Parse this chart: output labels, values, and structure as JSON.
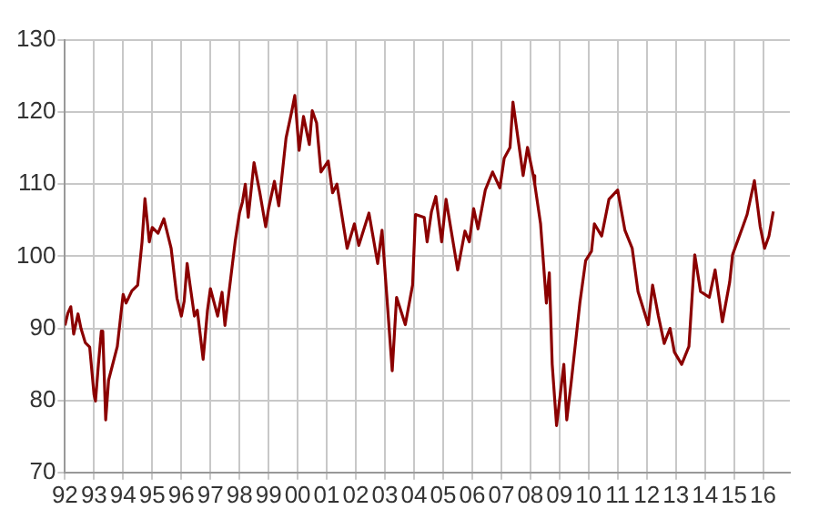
{
  "chart_data": {
    "type": "line",
    "x": [
      1992.0,
      1992.1,
      1992.2,
      1992.3,
      1992.45,
      1992.55,
      1992.7,
      1992.85,
      1993.0,
      1993.05,
      1993.15,
      1993.25,
      1993.3,
      1993.4,
      1993.5,
      1993.8,
      1994.0,
      1994.1,
      1994.3,
      1994.5,
      1994.65,
      1994.75,
      1994.9,
      1995.0,
      1995.2,
      1995.4,
      1995.65,
      1995.85,
      1996.0,
      1996.1,
      1996.2,
      1996.3,
      1996.45,
      1996.55,
      1996.75,
      1996.9,
      1997.0,
      1997.25,
      1997.4,
      1997.5,
      1997.85,
      1998.0,
      1998.1,
      1998.2,
      1998.3,
      1998.5,
      1998.7,
      1998.9,
      1999.0,
      1999.2,
      1999.35,
      1999.6,
      1999.8,
      1999.9,
      2000.05,
      2000.2,
      2000.4,
      2000.5,
      2000.65,
      2000.8,
      2001.05,
      2001.2,
      2001.35,
      2001.7,
      2001.95,
      2002.1,
      2002.45,
      2002.75,
      2002.9,
      2003.25,
      2003.4,
      2003.7,
      2003.95,
      2004.05,
      2004.35,
      2004.45,
      2004.6,
      2004.75,
      2004.95,
      2005.1,
      2005.5,
      2005.75,
      2005.9,
      2006.05,
      2006.2,
      2006.45,
      2006.7,
      2006.95,
      2007.1,
      2007.3,
      2007.4,
      2007.75,
      2007.9,
      2008.1,
      2008.15,
      2008.35,
      2008.55,
      2008.65,
      2008.75,
      2008.9,
      2009.15,
      2009.25,
      2009.4,
      2009.7,
      2009.9,
      2010.1,
      2010.2,
      2010.45,
      2010.7,
      2011.0,
      2011.25,
      2011.5,
      2011.7,
      2012.05,
      2012.2,
      2012.4,
      2012.6,
      2012.8,
      2012.95,
      2013.2,
      2013.45,
      2013.65,
      2013.85,
      2014.15,
      2014.35,
      2014.6,
      2014.85,
      2014.95,
      2015.3,
      2015.45,
      2015.7,
      2015.9,
      2016.05,
      2016.2,
      2016.35
    ],
    "series": [
      {
        "color": "#8b0000",
        "values": [
          90.4,
          92.1,
          93,
          89.2,
          92,
          90,
          88,
          87.4,
          80.8,
          79.9,
          85,
          89.6,
          89.6,
          77.3,
          82.8,
          87.5,
          94.7,
          93.5,
          95.2,
          96,
          102,
          108,
          102,
          104,
          103.2,
          105.2,
          101.1,
          94.2,
          91.7,
          93.8,
          99,
          96,
          91.7,
          92.5,
          85.7,
          92.5,
          95.5,
          91.7,
          95,
          90.4,
          102,
          106,
          107.5,
          110,
          105.4,
          113,
          108.8,
          104.1,
          106.6,
          110.4,
          107,
          116.4,
          120.2,
          122.3,
          114.7,
          119.4,
          115.5,
          120.2,
          118.5,
          111.7,
          113.2,
          108.8,
          110,
          101.1,
          104.5,
          101.5,
          106,
          99,
          103.6,
          84.1,
          94.3,
          90.5,
          96,
          105.8,
          105.4,
          102,
          106.2,
          108.3,
          102,
          107.9,
          98.1,
          103.5,
          102,
          106.6,
          103.8,
          109.2,
          111.7,
          109.5,
          113.6,
          115.1,
          121.4,
          111.2,
          115.1,
          111.2,
          110,
          104.5,
          93.5,
          97.7,
          85,
          76.5,
          85,
          77.3,
          82.4,
          93.5,
          99.4,
          100.7,
          104.5,
          102.8,
          107.9,
          109.2,
          103.6,
          101.1,
          95.1,
          90.5,
          96,
          91.7,
          87.9,
          90,
          86.7,
          85,
          87.5,
          100.2,
          95.1,
          94.3,
          98.1,
          90.9,
          96.4,
          100.2,
          104.1,
          105.8,
          110.5,
          104.1,
          101.1,
          102.8,
          106.2
        ]
      }
    ],
    "xlim": [
      1992,
      2016.92
    ],
    "xticks": [
      {
        "value": 1992,
        "label": "92"
      },
      {
        "value": 1993,
        "label": "93"
      },
      {
        "value": 1994,
        "label": "94"
      },
      {
        "value": 1995,
        "label": "95"
      },
      {
        "value": 1996,
        "label": "96"
      },
      {
        "value": 1997,
        "label": "97"
      },
      {
        "value": 1998,
        "label": "98"
      },
      {
        "value": 1999,
        "label": "99"
      },
      {
        "value": 2000,
        "label": "00"
      },
      {
        "value": 2001,
        "label": "01"
      },
      {
        "value": 2002,
        "label": "02"
      },
      {
        "value": 2003,
        "label": "03"
      },
      {
        "value": 2004,
        "label": "04"
      },
      {
        "value": 2005,
        "label": "05"
      },
      {
        "value": 2006,
        "label": "06"
      },
      {
        "value": 2007,
        "label": "07"
      },
      {
        "value": 2008,
        "label": "08"
      },
      {
        "value": 2009,
        "label": "09"
      },
      {
        "value": 2010,
        "label": "10"
      },
      {
        "value": 2011,
        "label": "11"
      },
      {
        "value": 2012,
        "label": "12"
      },
      {
        "value": 2013,
        "label": "13"
      },
      {
        "value": 2014,
        "label": "14"
      },
      {
        "value": 2015,
        "label": "15"
      },
      {
        "value": 2016,
        "label": "16"
      }
    ],
    "ylim": [
      70,
      130
    ],
    "yticks": [
      70,
      80,
      90,
      100,
      110,
      120,
      130
    ],
    "grid": true,
    "legend": false,
    "marker": "none",
    "line_style": "solid"
  }
}
